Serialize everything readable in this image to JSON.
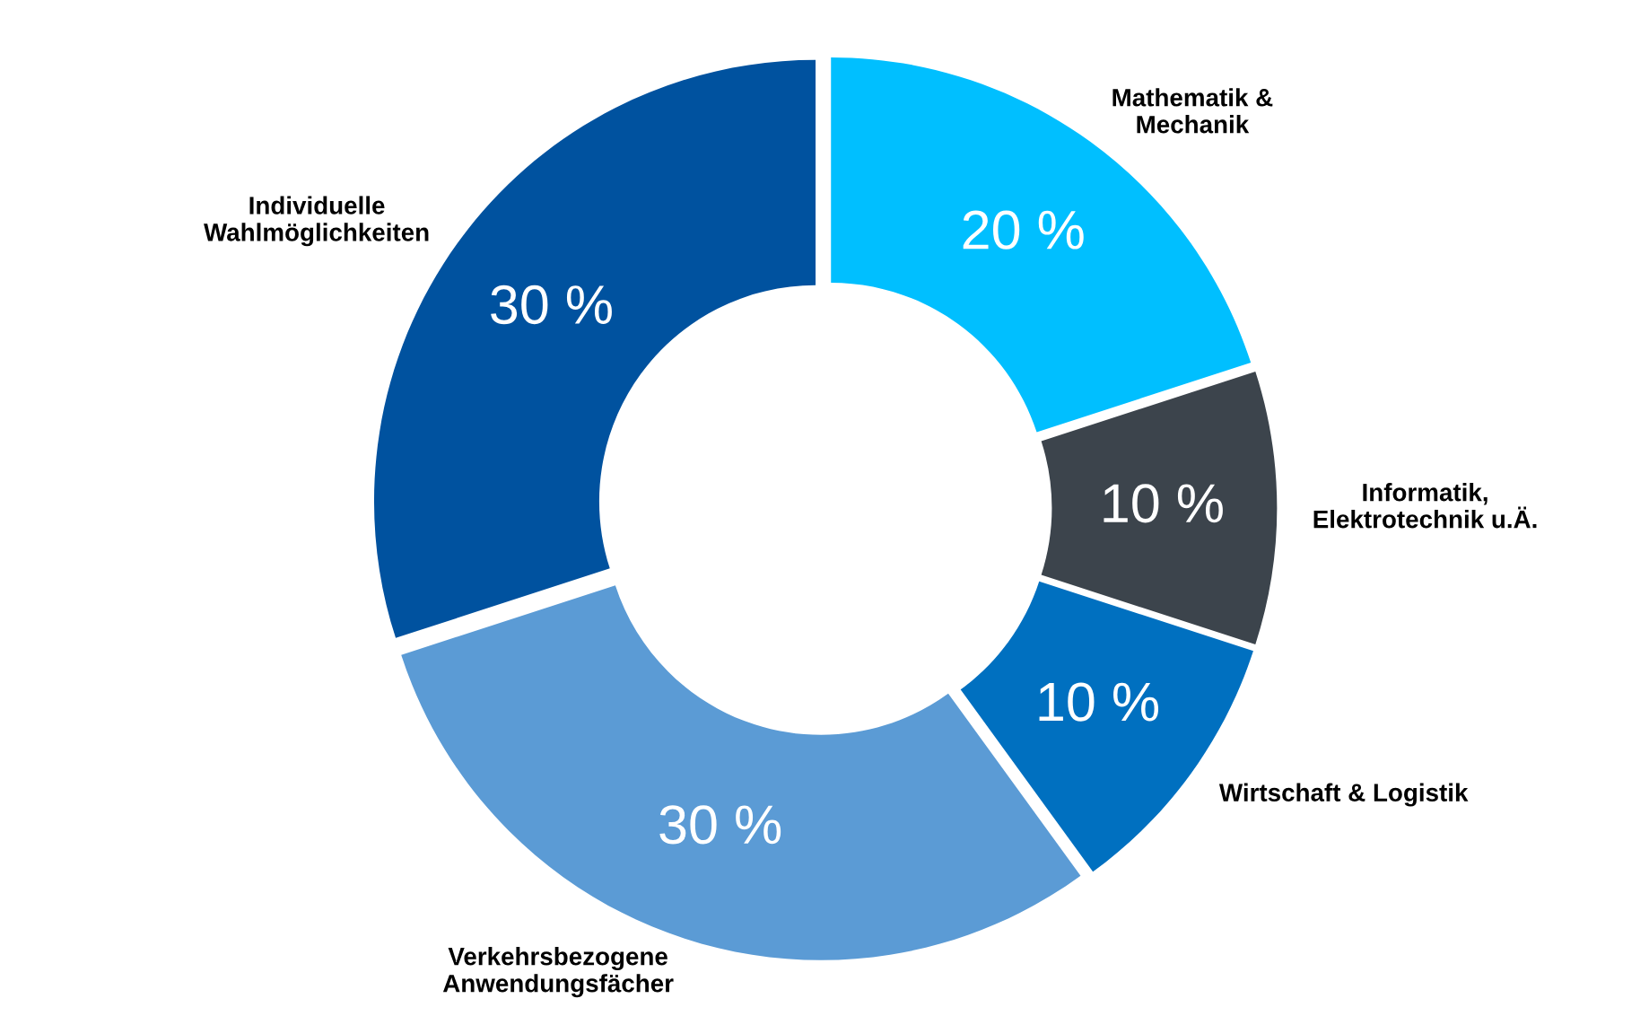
{
  "chart_data": {
    "type": "donut",
    "categories": [
      "Mathematik &\nMechanik",
      "Informatik,\nElektrotechnik u.Ä.",
      "Wirtschaft & Logistik",
      "Verkehrsbezogene\nAnwendungsfächer",
      "Individuelle\nWahlmöglichkeiten"
    ],
    "values": [
      20,
      10,
      10,
      30,
      30
    ],
    "colors": [
      "#00bfff",
      "#3c444c",
      "#0070c0",
      "#5b9bd5",
      "#00529f"
    ],
    "value_labels": [
      "20 %",
      "10 %",
      "10 %",
      "30 %",
      "30 %"
    ]
  }
}
